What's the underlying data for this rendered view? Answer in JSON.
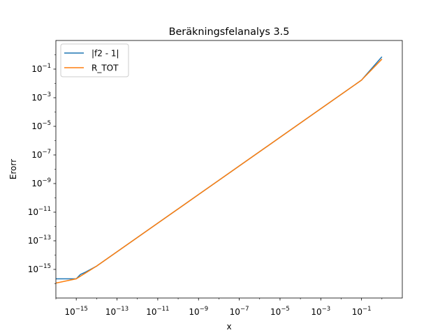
{
  "chart_data": {
    "type": "line",
    "title": "Beräkningsfelanalys 3.5",
    "xlabel": "x",
    "ylabel": "Erorr",
    "xscale": "log",
    "yscale": "log",
    "xlim": [
      1e-16,
      10
    ],
    "ylim": [
      1e-17,
      10
    ],
    "grid": false,
    "legend_position": "top-left",
    "x_ticks": [
      {
        "value": 1e-15,
        "base": "10",
        "exp": "−15"
      },
      {
        "value": 1e-13,
        "base": "10",
        "exp": "−13"
      },
      {
        "value": 1e-11,
        "base": "10",
        "exp": "−11"
      },
      {
        "value": 1e-09,
        "base": "10",
        "exp": "−9"
      },
      {
        "value": 1e-07,
        "base": "10",
        "exp": "−7"
      },
      {
        "value": 1e-05,
        "base": "10",
        "exp": "−5"
      },
      {
        "value": 0.001,
        "base": "10",
        "exp": "−3"
      },
      {
        "value": 0.1,
        "base": "10",
        "exp": "−1"
      }
    ],
    "y_ticks": [
      {
        "value": 1e-15,
        "base": "10",
        "exp": "−15"
      },
      {
        "value": 1e-13,
        "base": "10",
        "exp": "−13"
      },
      {
        "value": 1e-11,
        "base": "10",
        "exp": "−11"
      },
      {
        "value": 1e-09,
        "base": "10",
        "exp": "−9"
      },
      {
        "value": 1e-07,
        "base": "10",
        "exp": "−7"
      },
      {
        "value": 1e-05,
        "base": "10",
        "exp": "−5"
      },
      {
        "value": 0.001,
        "base": "10",
        "exp": "−3"
      },
      {
        "value": 0.1,
        "base": "10",
        "exp": "−1"
      }
    ],
    "series": [
      {
        "name": "|f2 - 1|",
        "color": "#1f77b4",
        "x": [
          1e-16,
          3e-16,
          5e-16,
          7e-16,
          1e-15,
          1.6e-15,
          3e-15,
          1e-14,
          1e-13,
          1e-11,
          1e-09,
          1e-07,
          1e-05,
          0.001,
          0.1,
          1
        ],
        "y": [
          2.2e-16,
          2.2e-16,
          2.2e-16,
          2.2e-16,
          2.2e-16,
          4.4e-16,
          6.7e-16,
          1.7e-15,
          1.7e-14,
          1.7e-12,
          1.7e-10,
          1.7e-08,
          1.7e-06,
          0.00017,
          0.017,
          0.72
        ]
      },
      {
        "name": "R_TOT",
        "color": "#ff7f0e",
        "x": [
          1e-16,
          1e-15,
          1e-14,
          1e-13,
          1e-11,
          1e-09,
          1e-07,
          1e-05,
          0.001,
          0.1,
          1
        ],
        "y": [
          1.1e-16,
          2.2e-16,
          1.7e-15,
          1.7e-14,
          1.7e-12,
          1.7e-10,
          1.7e-08,
          1.7e-06,
          0.00017,
          0.017,
          0.5
        ]
      }
    ]
  }
}
